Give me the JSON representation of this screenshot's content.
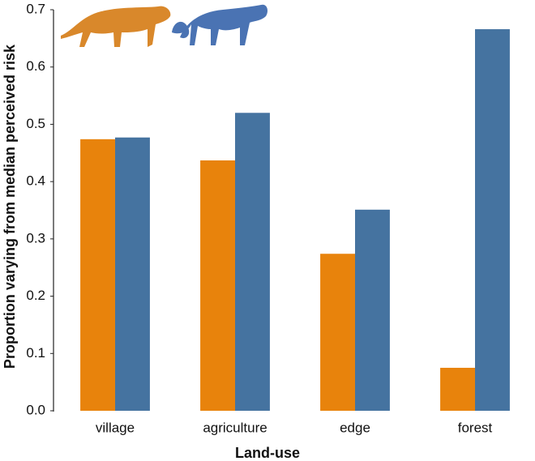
{
  "chart_data": {
    "type": "bar",
    "x_label": "Land-use",
    "y_label": "Proportion varying from median perceived risk",
    "categories": [
      "village",
      "agriculture",
      "edge",
      "forest"
    ],
    "series": [
      {
        "color": "#e8830c",
        "values": [
          0.474,
          0.437,
          0.274,
          0.075
        ]
      },
      {
        "color": "#4573a0",
        "values": [
          0.477,
          0.52,
          0.351,
          0.666
        ]
      }
    ],
    "ylim": [
      0,
      0.7
    ],
    "yticks": [
      {
        "value": 0,
        "label": "0.0"
      },
      0.1,
      0.2,
      0.3,
      0.4,
      0.5,
      0.6,
      0.7
    ]
  }
}
